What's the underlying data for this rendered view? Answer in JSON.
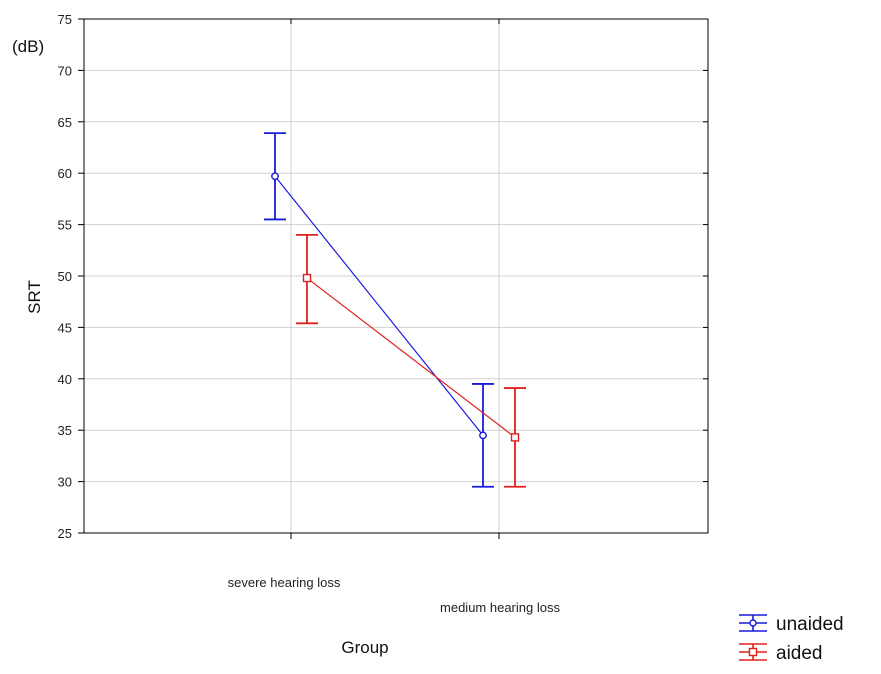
{
  "chart_data": {
    "type": "line",
    "title": "",
    "xlabel": "Group",
    "ylabel": "SRT",
    "yunit": "(dB)",
    "ylim": [
      25,
      75
    ],
    "yticks": [
      25,
      30,
      35,
      40,
      45,
      50,
      55,
      60,
      65,
      70,
      75
    ],
    "categories": [
      "severe hearing loss",
      "medium hearing loss"
    ],
    "grid": true,
    "legend_position": "bottom-right",
    "series": [
      {
        "name": "unaided",
        "color": "#1a1adc",
        "marker": "circle",
        "values": [
          59.7,
          34.5
        ],
        "lower": [
          55.5,
          29.5
        ],
        "upper": [
          63.9,
          39.5
        ]
      },
      {
        "name": "aided",
        "color": "#e0201e",
        "marker": "square",
        "values": [
          49.8,
          34.3
        ],
        "lower": [
          45.4,
          29.5
        ],
        "upper": [
          54.0,
          39.1
        ]
      }
    ]
  }
}
